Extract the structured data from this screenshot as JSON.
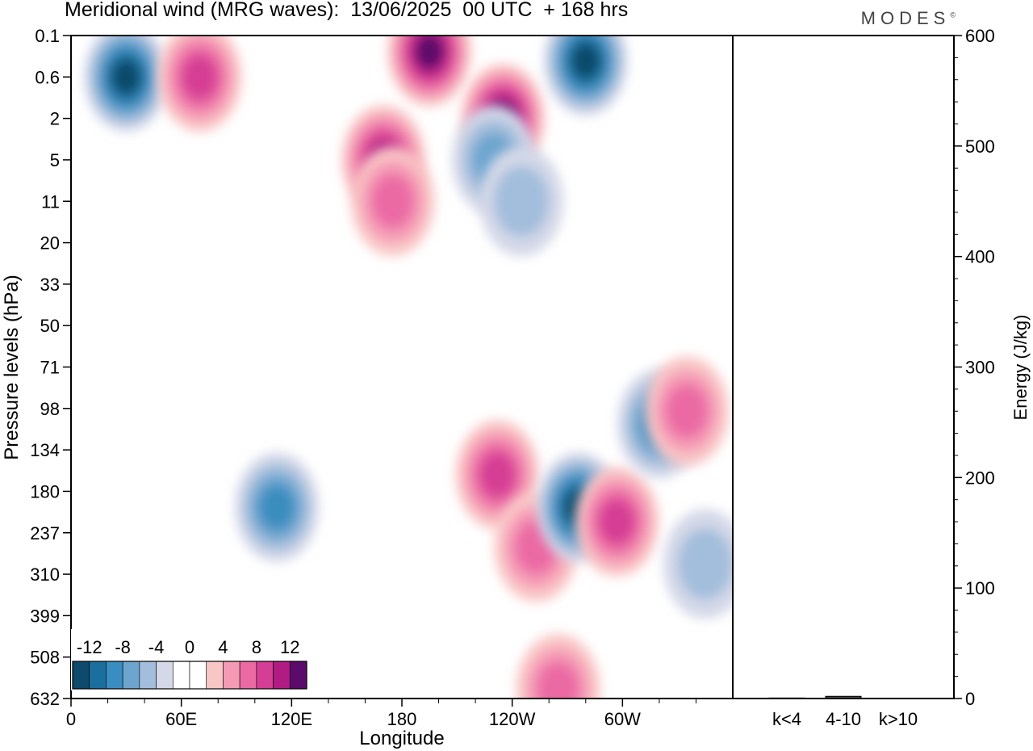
{
  "header": {
    "title": "Meridional wind (MRG waves):  13/06/2025  00 UTC  + 168 hrs",
    "brand": "MODES"
  },
  "chart_data": [
    {
      "type": "heatmap",
      "title": "Meridional wind (MRG waves):  13/06/2025  00 UTC  + 168 hrs",
      "xlabel": "Longitude",
      "ylabel": "Pressure levels (hPa)",
      "xticks": [
        "0",
        "60E",
        "120E",
        "180",
        "120W",
        "60W"
      ],
      "yticks": [
        "0.1",
        "0.6",
        "2",
        "5",
        "11",
        "20",
        "33",
        "50",
        "71",
        "98",
        "134",
        "180",
        "237",
        "310",
        "399",
        "508",
        "632"
      ],
      "y_scale": "log",
      "colorbar": {
        "labels": [
          "-12",
          "-8",
          "-4",
          "0",
          "4",
          "8",
          "12"
        ],
        "colors": [
          "#0d4a6b",
          "#1a6f9e",
          "#3a8dc0",
          "#6da5cf",
          "#a3bedc",
          "#d4d8e8",
          "#ffffff",
          "#ffffff",
          "#f9c6c6",
          "#f59ab5",
          "#eb6aa4",
          "#d63d94",
          "#b01b84",
          "#5c0a6b"
        ]
      },
      "features": [
        {
          "lon": 30,
          "level": 0.6,
          "value": -12
        },
        {
          "lon": 280,
          "level": 0.3,
          "value": -12
        },
        {
          "lon": 70,
          "level": 0.6,
          "value": 8
        },
        {
          "lon": 195,
          "level": 0.2,
          "value": 12
        },
        {
          "lon": 235,
          "level": 2,
          "value": 12
        },
        {
          "lon": 170,
          "level": 5,
          "value": 10
        },
        {
          "lon": 175,
          "level": 11,
          "value": 6
        },
        {
          "lon": 230,
          "level": 5,
          "value": -6
        },
        {
          "lon": 245,
          "level": 11,
          "value": -4
        },
        {
          "lon": 112,
          "level": 200,
          "value": -8
        },
        {
          "lon": 232,
          "level": 160,
          "value": 7
        },
        {
          "lon": 253,
          "level": 260,
          "value": 6
        },
        {
          "lon": 276,
          "level": 200,
          "value": -12
        },
        {
          "lon": 297,
          "level": 220,
          "value": 7
        },
        {
          "lon": 320,
          "level": 110,
          "value": -7
        },
        {
          "lon": 335,
          "level": 100,
          "value": 5
        },
        {
          "lon": 345,
          "level": 290,
          "value": -4
        },
        {
          "lon": 265,
          "level": 600,
          "value": 6
        }
      ]
    },
    {
      "type": "bar",
      "ylabel": "Energy (J/kg)",
      "ylim": [
        0,
        600
      ],
      "yticks": [
        "0",
        "100",
        "200",
        "300",
        "400",
        "500",
        "600"
      ],
      "categories": [
        "k<4",
        "4-10",
        "k>10"
      ],
      "values": [
        0.5,
        2,
        0.3
      ]
    }
  ]
}
